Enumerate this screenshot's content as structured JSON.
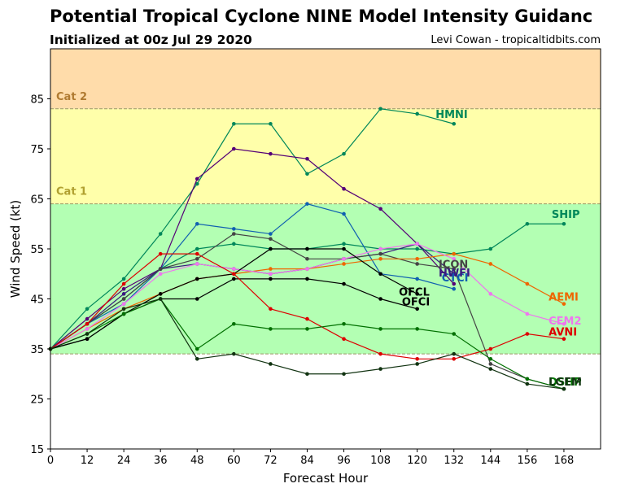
{
  "header": {
    "title": "Potential Tropical Cyclone NINE Model Intensity Guidanc",
    "subtitle": "Initialized at 00z Jul 29 2020",
    "credit": "Levi Cowan - tropicaltidbits.com"
  },
  "chart_data": {
    "type": "line",
    "title": "Potential Tropical Cyclone NINE Model Intensity Guidance",
    "subtitle": "Initialized at 00z Jul 29 2020",
    "xlabel": "Forecast Hour",
    "ylabel": "Wind Speed (kt)",
    "xlim": [
      0,
      180
    ],
    "ylim": [
      15,
      95
    ],
    "xticks": [
      0,
      12,
      24,
      36,
      48,
      60,
      72,
      84,
      96,
      108,
      120,
      132,
      144,
      156,
      168
    ],
    "yticks": [
      15,
      25,
      35,
      45,
      55,
      65,
      75,
      85
    ],
    "bands": [
      {
        "from": 15,
        "to": 34,
        "color": "#ffffff",
        "label": ""
      },
      {
        "from": 34,
        "to": 64,
        "color": "#b3ffb3",
        "label": ""
      },
      {
        "from": 64,
        "to": 83,
        "color": "#ffffaa",
        "label": "Cat 1",
        "label_color": "#b0a030"
      },
      {
        "from": 83,
        "to": 95,
        "color": "#ffdcaa",
        "label": "Cat 2",
        "label_color": "#b07a30"
      }
    ],
    "series": [
      {
        "name": "HMNI",
        "color": "#00875a",
        "x": [
          0,
          12,
          24,
          36,
          48,
          60,
          72,
          84,
          96,
          108,
          120,
          132
        ],
        "y": [
          35,
          43,
          49,
          58,
          68,
          80,
          80,
          70,
          74,
          83,
          82,
          80
        ],
        "label_x": 126,
        "label_y": 82
      },
      {
        "name": "",
        "color": "#550077",
        "x": [
          0,
          12,
          24,
          36,
          48,
          60,
          72,
          84,
          96,
          108,
          120,
          132
        ],
        "y": [
          35,
          41,
          47,
          51,
          69,
          75,
          74,
          73,
          67,
          63,
          56,
          48
        ]
      },
      {
        "name": "SHIP",
        "color": "#00875a",
        "x": [
          0,
          12,
          24,
          36,
          48,
          60,
          72,
          84,
          96,
          108,
          120,
          132,
          144,
          156,
          168
        ],
        "y": [
          35,
          40,
          45,
          51,
          55,
          56,
          55,
          55,
          56,
          55,
          55,
          54,
          55,
          60,
          60
        ],
        "label_x": 164,
        "label_y": 62
      },
      {
        "name": "CTCI",
        "color": "#1060b0",
        "x": [
          0,
          12,
          24,
          36,
          48,
          60,
          72,
          84,
          96,
          108,
          120,
          132
        ],
        "y": [
          35,
          40,
          44,
          51,
          60,
          59,
          58,
          64,
          62,
          50,
          49,
          47
        ],
        "label_x": 128,
        "label_y": 49.3
      },
      {
        "name": "HWFI",
        "color": "#3a1a80",
        "x": [
          0,
          12,
          24,
          36,
          48,
          60,
          72,
          84,
          96,
          108,
          120,
          132
        ],
        "y": [
          35,
          40,
          46,
          51,
          52,
          51,
          50,
          51,
          53,
          54,
          56,
          50
        ],
        "label_x": 127,
        "label_y": 50.3
      },
      {
        "name": "ICON",
        "color": "#444444",
        "x": [
          0,
          12,
          24,
          36,
          48,
          60,
          72,
          84,
          96,
          108,
          120,
          132,
          144,
          156,
          168
        ],
        "y": [
          35,
          40,
          45,
          51,
          53,
          58,
          57,
          53,
          53,
          54,
          52,
          51,
          32,
          29,
          27
        ],
        "label_x": 127,
        "label_y": 52
      },
      {
        "name": "AEMI",
        "color": "#ee6600",
        "x": [
          0,
          12,
          24,
          36,
          48,
          60,
          72,
          84,
          96,
          108,
          120,
          132,
          144,
          156,
          168
        ],
        "y": [
          35,
          39,
          43,
          46,
          49,
          50,
          51,
          51,
          52,
          53,
          53,
          54,
          52,
          48,
          44
        ],
        "label_x": 163,
        "label_y": 45.5
      },
      {
        "name": "CEM2",
        "color": "#ee77ee",
        "x": [
          0,
          12,
          24,
          36,
          48,
          60,
          72,
          84,
          96,
          108,
          120,
          132,
          144,
          156,
          168
        ],
        "y": [
          35,
          39,
          44,
          50,
          52,
          51,
          50,
          51,
          53,
          55,
          56,
          53,
          46,
          42,
          40
        ],
        "label_x": 163,
        "label_y": 40.7
      },
      {
        "name": "OFCL",
        "color": "#000000",
        "x": [
          0,
          12,
          24,
          36,
          48,
          60,
          72,
          84,
          96,
          108,
          120
        ],
        "y": [
          35,
          37,
          42,
          46,
          49,
          50,
          55,
          55,
          55,
          50,
          46
        ],
        "label_x": 114,
        "label_y": 46.5
      },
      {
        "name": "OFCI",
        "color": "#000000",
        "x": [
          0,
          12,
          24,
          36,
          48,
          60,
          72,
          84,
          96,
          108,
          120
        ],
        "y": [
          35,
          37,
          42,
          45,
          45,
          49,
          49,
          49,
          48,
          45,
          43
        ],
        "label_x": 115,
        "label_y": 44.5
      },
      {
        "name": "AVNI",
        "color": "#dd0000",
        "x": [
          0,
          12,
          24,
          36,
          48,
          60,
          72,
          84,
          96,
          108,
          120,
          132,
          144,
          156,
          168
        ],
        "y": [
          35,
          40,
          48,
          54,
          54,
          50,
          43,
          41,
          37,
          34,
          33,
          33,
          35,
          38,
          37
        ],
        "label_x": 163,
        "label_y": 38.5
      },
      {
        "name": "DSHP",
        "color": "#007000",
        "x": [
          0,
          12,
          24,
          36,
          48,
          60,
          72,
          84,
          96,
          108,
          120,
          132,
          144,
          156,
          168
        ],
        "y": [
          35,
          38,
          42,
          45,
          35,
          40,
          39,
          39,
          40,
          39,
          39,
          38,
          33,
          29,
          27
        ],
        "label_x": 163,
        "label_y": 28.5
      },
      {
        "name": "LGEM",
        "color": "#113311",
        "x": [
          0,
          12,
          24,
          36,
          48,
          60,
          72,
          84,
          96,
          108,
          120,
          132,
          144,
          156,
          168
        ],
        "y": [
          35,
          38,
          43,
          45,
          33,
          34,
          32,
          30,
          30,
          31,
          32,
          34,
          31,
          28,
          27
        ],
        "label_x": 163,
        "label_y": 28.5
      }
    ]
  }
}
